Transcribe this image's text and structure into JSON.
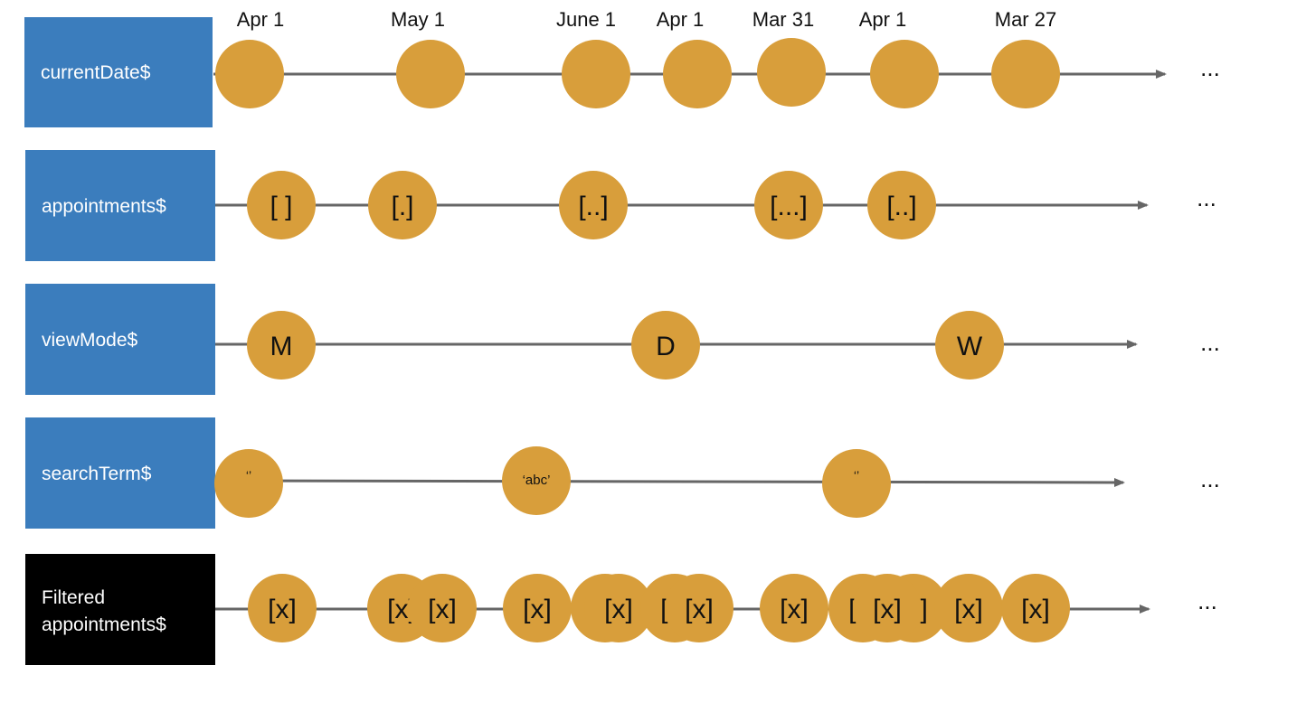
{
  "colors": {
    "stream_label_bg": "#3b7dbd",
    "result_label_bg": "#000000",
    "marble_fill": "#d89e3b",
    "line": "#666666",
    "text": "#111111",
    "label_text": "#ffffff"
  },
  "top_dates": [
    "Apr 1",
    "May 1",
    "June 1",
    "Apr 1",
    "Mar 31",
    "Apr 1",
    "Mar 27"
  ],
  "streams": [
    {
      "id": "current-date",
      "label": "currentDate$",
      "kind": "source",
      "marbles": [
        "",
        "",
        "",
        "",
        "",
        "",
        ""
      ],
      "more": "..."
    },
    {
      "id": "appointments",
      "label": "appointments$",
      "kind": "source",
      "marbles": [
        "[ ]",
        "[.]",
        "[..]",
        "[...]",
        "[..]"
      ],
      "more": "..."
    },
    {
      "id": "view-mode",
      "label": "viewMode$",
      "kind": "source",
      "marbles": [
        "M",
        "D",
        "W"
      ],
      "more": "..."
    },
    {
      "id": "search-term",
      "label": "searchTerm$",
      "kind": "source",
      "marbles": [
        "‘’",
        "‘abc’",
        "‘’"
      ],
      "more": "..."
    },
    {
      "id": "filtered-appointments",
      "label_lines": [
        "Filtered",
        "appointments$"
      ],
      "kind": "result",
      "marbles": [
        "[x]",
        "[x]",
        "[x]",
        "[x]",
        "[x]",
        "[x]",
        "[x]",
        "[x]",
        "[x]",
        "[x]",
        "[x]",
        "[x]",
        "[x]",
        "[x]",
        "[x]"
      ],
      "more": "..."
    }
  ]
}
